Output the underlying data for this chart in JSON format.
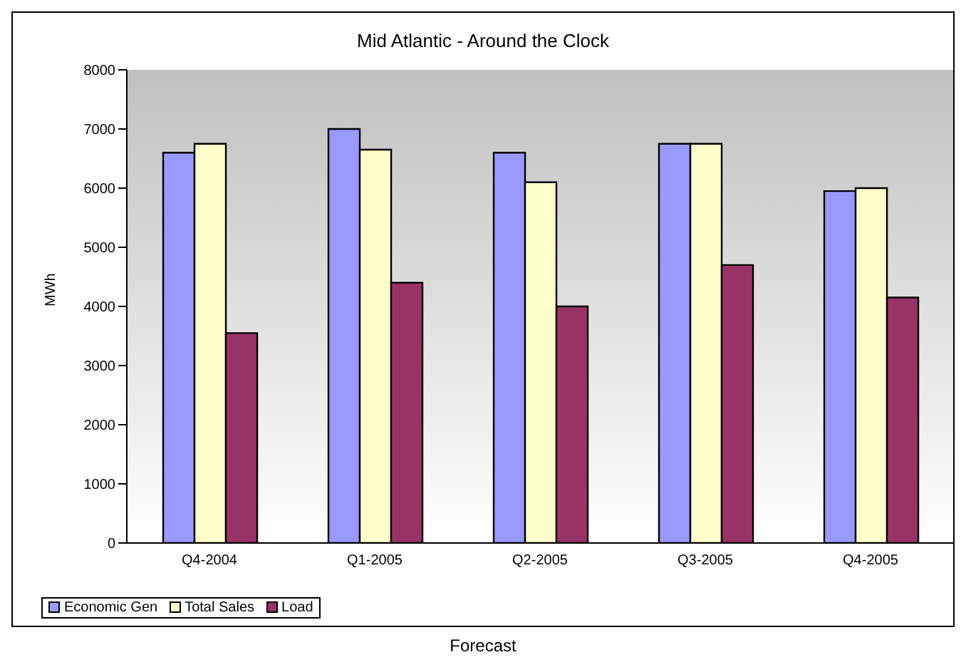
{
  "chart_data": {
    "type": "bar",
    "title": "Mid Atlantic - Around the Clock",
    "xlabel": "Forecast",
    "ylabel": "MWh",
    "categories": [
      "Q4-2004",
      "Q1-2005",
      "Q2-2005",
      "Q3-2005",
      "Q4-2005"
    ],
    "series": [
      {
        "name": "Economic Gen",
        "color": "#9999ff",
        "values": [
          6600,
          7000,
          6600,
          6750,
          5950
        ]
      },
      {
        "name": "Total Sales",
        "color": "#ffffcc",
        "values": [
          6750,
          6650,
          6100,
          6750,
          6000
        ]
      },
      {
        "name": "Load",
        "color": "#993366",
        "values": [
          3550,
          4400,
          4000,
          4700,
          4150
        ]
      }
    ],
    "ylim": [
      0,
      8000
    ],
    "yticks": [
      0,
      1000,
      2000,
      3000,
      4000,
      5000,
      6000,
      7000,
      8000
    ],
    "legend": "bottom"
  }
}
